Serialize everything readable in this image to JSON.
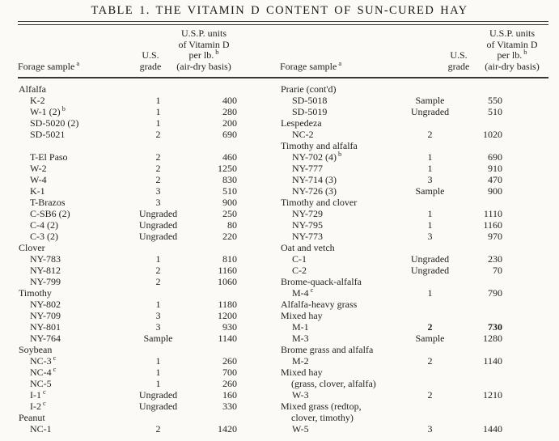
{
  "title": "TABLE 1. THE VITAMIN D CONTENT OF SUN-CURED HAY",
  "columns": {
    "forage_label": "Forage sample",
    "forage_sup": "a",
    "grade_lines": [
      "U.S.",
      "grade"
    ],
    "units_lines": [
      "U.S.P. units",
      "of Vitamin D",
      "per lb.",
      "(air-dry basis)"
    ],
    "units_sup": "b"
  },
  "left_rows": [
    {
      "type": "group",
      "label": "Alfalfa"
    },
    {
      "type": "sample",
      "label": "K-2",
      "grade": "1",
      "value": "400"
    },
    {
      "type": "sample",
      "label": "W-1 (2)",
      "sup": "b",
      "grade": "1",
      "value": "280"
    },
    {
      "type": "sample",
      "label": "SD-5020 (2)",
      "grade": "1",
      "value": "200"
    },
    {
      "type": "sample",
      "label": "SD-5021",
      "grade": "2",
      "value": "690"
    },
    {
      "type": "blank"
    },
    {
      "type": "sample",
      "label": "T-El Paso",
      "grade": "2",
      "value": "460"
    },
    {
      "type": "sample",
      "label": "W-2",
      "grade": "2",
      "value": "1250"
    },
    {
      "type": "sample",
      "label": "W-4",
      "grade": "2",
      "value": "830"
    },
    {
      "type": "sample",
      "label": "K-1",
      "grade": "3",
      "value": "510"
    },
    {
      "type": "sample",
      "label": "T-Brazos",
      "grade": "3",
      "value": "900"
    },
    {
      "type": "sample",
      "label": "C-SB6 (2)",
      "grade": "Ungraded",
      "value": "250"
    },
    {
      "type": "sample",
      "label": "C-4 (2)",
      "grade": "Ungraded",
      "value": "80"
    },
    {
      "type": "sample",
      "label": "C-3 (2)",
      "grade": "Ungraded",
      "value": "220"
    },
    {
      "type": "group",
      "label": "Clover"
    },
    {
      "type": "sample",
      "label": "NY-783",
      "grade": "1",
      "value": "810"
    },
    {
      "type": "sample",
      "label": "NY-812",
      "grade": "2",
      "value": "1160"
    },
    {
      "type": "sample",
      "label": "NY-799",
      "grade": "2",
      "value": "1060"
    },
    {
      "type": "group",
      "label": "Timothy"
    },
    {
      "type": "sample",
      "label": "NY-802",
      "grade": "1",
      "value": "1180"
    },
    {
      "type": "sample",
      "label": "NY-709",
      "grade": "3",
      "value": "1200"
    },
    {
      "type": "sample",
      "label": "NY-801",
      "grade": "3",
      "value": "930"
    },
    {
      "type": "sample",
      "label": "NY-764",
      "grade": "Sample",
      "value": "1140"
    },
    {
      "type": "group",
      "label": "Soybean"
    },
    {
      "type": "sample",
      "label": "NC-3",
      "sup": "c",
      "grade": "1",
      "value": "260"
    },
    {
      "type": "sample",
      "label": "NC-4",
      "sup": "c",
      "grade": "1",
      "value": "700"
    },
    {
      "type": "sample",
      "label": "NC-5",
      "grade": "1",
      "value": "260"
    },
    {
      "type": "sample",
      "label": "I-1",
      "sup": "c",
      "grade": "Ungraded",
      "value": "160"
    },
    {
      "type": "sample",
      "label": "I-2",
      "sup": "c",
      "grade": "Ungraded",
      "value": "330"
    },
    {
      "type": "group",
      "label": "Peanut"
    },
    {
      "type": "sample",
      "label": "NC-1",
      "grade": "2",
      "value": "1420"
    }
  ],
  "right_rows": [
    {
      "type": "group",
      "label": "Prarie (cont'd)"
    },
    {
      "type": "sample",
      "label": "SD-5018",
      "grade": "Sample",
      "value": "550"
    },
    {
      "type": "sample",
      "label": "SD-5019",
      "grade": "Ungraded",
      "value": "510"
    },
    {
      "type": "group",
      "label": "Lespedeza"
    },
    {
      "type": "sample",
      "label": "NC-2",
      "grade": "2",
      "value": "1020"
    },
    {
      "type": "group",
      "label": "Timothy and alfalfa"
    },
    {
      "type": "sample",
      "label": "NY-702 (4)",
      "sup": "b",
      "grade": "1",
      "value": "690"
    },
    {
      "type": "sample",
      "label": "NY-777",
      "grade": "1",
      "value": "910"
    },
    {
      "type": "sample",
      "label": "NY-714 (3)",
      "grade": "3",
      "value": "470"
    },
    {
      "type": "sample",
      "label": "NY-726 (3)",
      "grade": "Sample",
      "value": "900"
    },
    {
      "type": "group",
      "label": "Timothy and clover"
    },
    {
      "type": "sample",
      "label": "NY-729",
      "grade": "1",
      "value": "1110"
    },
    {
      "type": "sample",
      "label": "NY-795",
      "grade": "1",
      "value": "1160"
    },
    {
      "type": "sample",
      "label": "NY-773",
      "grade": "3",
      "value": "970"
    },
    {
      "type": "group",
      "label": "Oat and vetch"
    },
    {
      "type": "sample",
      "label": "C-1",
      "grade": "Ungraded",
      "value": "230"
    },
    {
      "type": "sample",
      "label": "C-2",
      "grade": "Ungraded",
      "value": "70"
    },
    {
      "type": "group",
      "label": "Brome-quack-alfalfa"
    },
    {
      "type": "sample",
      "label": "M-4",
      "sup": "c",
      "grade": "1",
      "value": "790"
    },
    {
      "type": "group",
      "label": "Alfalfa-heavy grass"
    },
    {
      "type": "group",
      "label": "Mixed hay"
    },
    {
      "type": "sample",
      "label": "M-1",
      "grade": "2",
      "value": "730",
      "bold": true
    },
    {
      "type": "sample",
      "label": "M-3",
      "grade": "Sample",
      "value": "1280"
    },
    {
      "type": "group",
      "label": "Brome grass and alfalfa"
    },
    {
      "type": "sample",
      "label": "M-2",
      "grade": "2",
      "value": "1140"
    },
    {
      "type": "group",
      "label": "Mixed hay"
    },
    {
      "type": "cont",
      "label": "(grass, clover, alfalfa)"
    },
    {
      "type": "sample",
      "label": "W-3",
      "grade": "2",
      "value": "1210"
    },
    {
      "type": "group",
      "label": "Mixed grass (redtop,"
    },
    {
      "type": "cont",
      "label": "clover, timothy)"
    },
    {
      "type": "sample",
      "label": "W-5",
      "grade": "3",
      "value": "1440"
    }
  ],
  "colors": {
    "paper": "#fbfaf6",
    "ink": "#211f1c",
    "rule": "#3a3631"
  }
}
